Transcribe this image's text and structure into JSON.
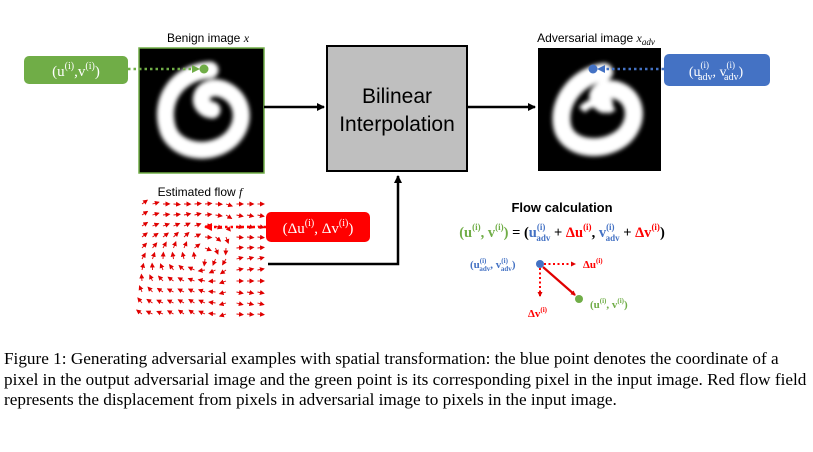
{
  "labels": {
    "benign": "Benign image x",
    "adversarial": "Adversarial image x_adv",
    "flow": "Estimated flow f",
    "bilinear_line1": "Bilinear",
    "bilinear_line2": "Interpolation",
    "flow_calc_title": "Flow calculation"
  },
  "math": {
    "input_coord": "(u^(i), v^(i))",
    "adv_coord": "(u_adv^(i), v_adv^(i))",
    "flow_delta": "(Δu^(i), Δv^(i))",
    "equation": "(u^(i), v^(i)) = (u_adv^(i) + Δu^(i), v_adv^(i) + Δv^(i))",
    "du": "Δu^(i)",
    "dv": "Δv^(i)"
  },
  "caption": "Figure 1: Generating adversarial examples with spatial transformation: the blue point denotes the coordinate of a pixel in the output adversarial image and the green point is its corresponding pixel in the input image. Red flow field represents the displacement from pixels in adversarial image to pixels in the input image.",
  "colors": {
    "green": "#70ad47",
    "blue": "#4472c4",
    "red": "#ff0000",
    "box_gray": "#bfbfbf"
  }
}
